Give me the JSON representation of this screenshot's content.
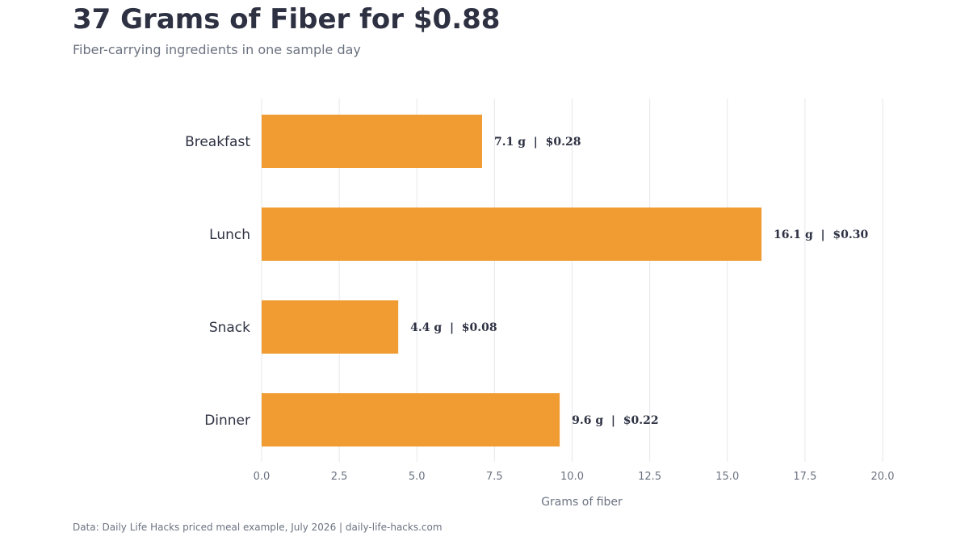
{
  "header": {
    "title": "37 Grams of Fiber for $0.88",
    "subtitle": "Fiber-carrying ingredients in one sample day"
  },
  "footer": {
    "source": "Data: Daily Life Hacks priced meal example, July 2026 | daily-life-hacks.com"
  },
  "colors": {
    "bar": "#f09c33",
    "grid": "#e5e7eb",
    "text": "#2d3142",
    "muted": "#6b7280"
  },
  "chart_data": {
    "type": "bar",
    "orientation": "horizontal",
    "title": "37 Grams of Fiber for $0.88",
    "subtitle": "Fiber-carrying ingredients in one sample day",
    "xlabel": "Grams of fiber",
    "ylabel": "",
    "categories": [
      "Breakfast",
      "Lunch",
      "Snack",
      "Dinner"
    ],
    "values": [
      7.1,
      16.1,
      4.4,
      9.6
    ],
    "data_labels": [
      "7.1 g  |  $0.28",
      "16.1 g  |  $0.30",
      "4.4 g  |  $0.08",
      "9.6 g  |  $0.22"
    ],
    "xlim": [
      0,
      20
    ],
    "xticks": [
      0,
      2.5,
      5,
      7.5,
      10,
      12.5,
      15,
      17.5,
      20
    ],
    "xtick_labels": [
      "0.0",
      "2.5",
      "5.0",
      "7.5",
      "10.0",
      "12.5",
      "15.0",
      "17.5",
      "20.0"
    ],
    "grid": "vertical",
    "legend": "none"
  }
}
